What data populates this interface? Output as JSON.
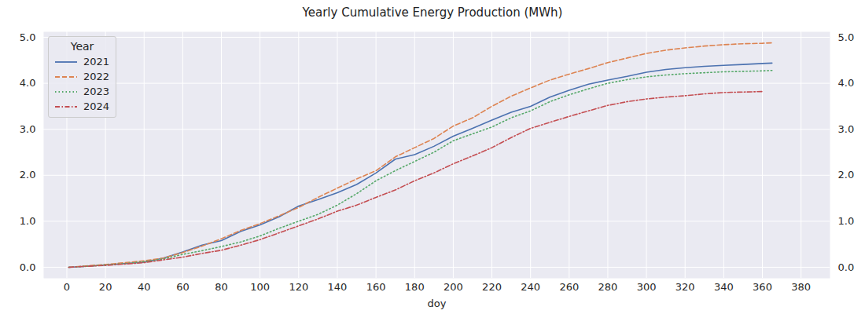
{
  "chart_data": {
    "type": "line",
    "title": "Yearly Cumulative Energy Production (MWh)",
    "x_label": "doy",
    "legend_title": "Year",
    "legend": "upper left",
    "grid": true,
    "x": [
      1,
      10,
      20,
      30,
      40,
      50,
      60,
      70,
      80,
      90,
      100,
      110,
      120,
      130,
      140,
      150,
      160,
      170,
      180,
      190,
      200,
      210,
      220,
      230,
      240,
      250,
      260,
      270,
      280,
      290,
      300,
      310,
      320,
      330,
      340,
      350,
      360,
      365
    ],
    "xlim": [
      -12,
      395
    ],
    "xticks": [
      0,
      20,
      40,
      60,
      80,
      100,
      120,
      140,
      160,
      180,
      200,
      220,
      240,
      260,
      280,
      300,
      320,
      340,
      360,
      380
    ],
    "ylim": [
      -0.24,
      5.12
    ],
    "yticks": [
      0,
      1,
      2,
      3,
      4,
      5
    ],
    "series": [
      {
        "name": "2021",
        "color": "#4c72b0",
        "line_style": "solid",
        "values": [
          0,
          0.02,
          0.05,
          0.08,
          0.11,
          0.2,
          0.33,
          0.48,
          0.58,
          0.78,
          0.92,
          1.1,
          1.33,
          1.47,
          1.62,
          1.8,
          2.05,
          2.35,
          2.45,
          2.63,
          2.85,
          3.02,
          3.2,
          3.37,
          3.5,
          3.7,
          3.85,
          3.98,
          4.07,
          4.15,
          4.24,
          4.3,
          4.34,
          4.37,
          4.39,
          4.41,
          4.43,
          4.44
        ]
      },
      {
        "name": "2022",
        "color": "#dd8452",
        "line_style": "dashed",
        "values": [
          0,
          0.03,
          0.06,
          0.1,
          0.14,
          0.2,
          0.32,
          0.46,
          0.62,
          0.8,
          0.95,
          1.12,
          1.3,
          1.52,
          1.72,
          1.92,
          2.1,
          2.4,
          2.6,
          2.8,
          3.07,
          3.25,
          3.5,
          3.72,
          3.9,
          4.07,
          4.2,
          4.32,
          4.45,
          4.55,
          4.65,
          4.72,
          4.77,
          4.81,
          4.84,
          4.86,
          4.87,
          4.88
        ]
      },
      {
        "name": "2023",
        "color": "#55a868",
        "line_style": "dotted",
        "values": [
          0,
          0.02,
          0.05,
          0.08,
          0.12,
          0.18,
          0.28,
          0.36,
          0.45,
          0.55,
          0.68,
          0.85,
          1.0,
          1.15,
          1.35,
          1.6,
          1.88,
          2.1,
          2.3,
          2.5,
          2.75,
          2.9,
          3.05,
          3.25,
          3.4,
          3.6,
          3.75,
          3.88,
          4.0,
          4.08,
          4.14,
          4.18,
          4.21,
          4.23,
          4.25,
          4.26,
          4.27,
          4.28
        ]
      },
      {
        "name": "2024",
        "color": "#c44e52",
        "line_style": "dashdot",
        "values": [
          0,
          0.02,
          0.04,
          0.07,
          0.1,
          0.16,
          0.22,
          0.3,
          0.37,
          0.48,
          0.6,
          0.75,
          0.9,
          1.05,
          1.22,
          1.35,
          1.52,
          1.68,
          1.88,
          2.05,
          2.25,
          2.42,
          2.6,
          2.82,
          3.02,
          3.15,
          3.28,
          3.4,
          3.52,
          3.6,
          3.66,
          3.7,
          3.73,
          3.77,
          3.8,
          3.81,
          3.82,
          null
        ]
      }
    ]
  }
}
